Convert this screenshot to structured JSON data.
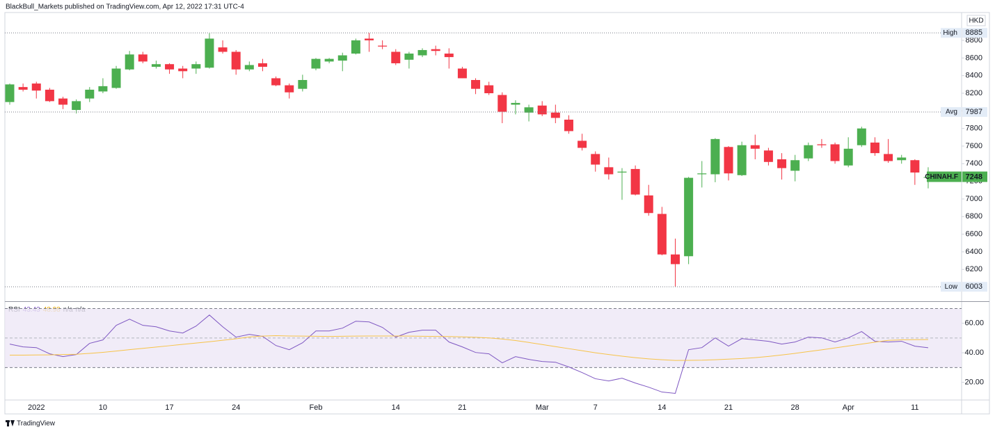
{
  "header": {
    "text": "BlackBull_Markets published on TradingView.com, Apr 12, 2022 17:31 UTC-4"
  },
  "chart_data": [
    {
      "type": "candlestick",
      "currency": "HKD",
      "categories": [
        null,
        null,
        "2022",
        null,
        null,
        null,
        null,
        "10",
        null,
        null,
        null,
        null,
        "17",
        null,
        null,
        null,
        null,
        "24",
        null,
        null,
        null,
        null,
        null,
        "Feb",
        null,
        null,
        null,
        null,
        null,
        "14",
        null,
        null,
        null,
        null,
        "21",
        null,
        null,
        null,
        null,
        null,
        "Mar",
        null,
        null,
        null,
        "7",
        null,
        null,
        null,
        null,
        "14",
        null,
        null,
        null,
        null,
        "21",
        null,
        null,
        null,
        null,
        "28",
        null,
        null,
        null,
        "Apr",
        null,
        null,
        null,
        null,
        "11",
        null
      ],
      "open": [
        8100,
        8270,
        8310,
        8240,
        8140,
        8010,
        8140,
        8220,
        8260,
        8470,
        8640,
        8500,
        8530,
        8480,
        8480,
        8490,
        8720,
        8670,
        8470,
        8540,
        8370,
        8290,
        8250,
        8480,
        8560,
        8570,
        8650,
        8820,
        8740,
        8670,
        8580,
        8630,
        8700,
        8650,
        8480,
        8350,
        8290,
        8180,
        8070,
        7980,
        8060,
        7980,
        7900,
        7660,
        7510,
        7360,
        7300,
        7340,
        7040,
        6830,
        6370,
        6350,
        7280,
        7280,
        7590,
        7270,
        7610,
        7550,
        7450,
        7320,
        7460,
        7620,
        7620,
        7380,
        7610,
        7640,
        7510,
        7440,
        7440,
        7240
      ],
      "high": [
        8310,
        8310,
        8330,
        8260,
        8160,
        8130,
        8270,
        8370,
        8510,
        8680,
        8670,
        8570,
        8540,
        8510,
        8560,
        8880,
        8800,
        8690,
        8560,
        8590,
        8390,
        8310,
        8410,
        8600,
        8600,
        8660,
        8820,
        8885,
        8800,
        8700,
        8670,
        8710,
        8740,
        8710,
        8500,
        8370,
        8330,
        8210,
        8120,
        8070,
        8110,
        8070,
        7950,
        7740,
        7540,
        7470,
        7350,
        7380,
        7160,
        6910,
        6550,
        7250,
        7430,
        7690,
        7600,
        7650,
        7730,
        7580,
        7520,
        7500,
        7640,
        7680,
        7640,
        7700,
        7820,
        7700,
        7680,
        7500,
        7450,
        7360
      ],
      "low": [
        8070,
        8220,
        8140,
        8100,
        8020,
        7970,
        8100,
        8200,
        8250,
        8460,
        8540,
        8480,
        8420,
        8370,
        8420,
        8480,
        8650,
        8410,
        8450,
        8450,
        8280,
        8140,
        8220,
        8460,
        8540,
        8450,
        8640,
        8670,
        8700,
        8520,
        8480,
        8610,
        8630,
        8480,
        8370,
        8190,
        8180,
        7860,
        7960,
        7880,
        7940,
        7860,
        7740,
        7550,
        7310,
        7220,
        6990,
        7040,
        6810,
        6360,
        6003,
        6260,
        7130,
        7190,
        7210,
        7260,
        7450,
        7380,
        7220,
        7200,
        7430,
        7580,
        7400,
        7360,
        7590,
        7490,
        7410,
        7400,
        7160,
        7120
      ],
      "close": [
        8300,
        8240,
        8230,
        8110,
        8070,
        8110,
        8240,
        8280,
        8480,
        8640,
        8560,
        8530,
        8470,
        8450,
        8530,
        8820,
        8670,
        8470,
        8520,
        8500,
        8290,
        8210,
        8350,
        8590,
        8590,
        8630,
        8800,
        8800,
        8730,
        8540,
        8650,
        8690,
        8680,
        8610,
        8370,
        8250,
        8200,
        7990,
        8090,
        8040,
        7960,
        7920,
        7770,
        7580,
        7390,
        7280,
        7310,
        7050,
        6840,
        6370,
        6260,
        7240,
        7290,
        7680,
        7290,
        7610,
        7570,
        7420,
        7350,
        7440,
        7610,
        7610,
        7430,
        7570,
        7800,
        7520,
        7430,
        7470,
        7300,
        7248
      ],
      "up_color": "#4caf50",
      "down_color": "#f23645",
      "ylim": [
        5847,
        9116
      ],
      "yticks": [
        6200,
        6400,
        6600,
        6800,
        7000,
        7200,
        7400,
        7600,
        7800,
        8000,
        8200,
        8400,
        8600,
        8800
      ],
      "reference_lines": [
        {
          "label": "High",
          "value": 8885
        },
        {
          "label": "Avg",
          "value": 7987
        },
        {
          "label": "Low",
          "value": 6003
        }
      ],
      "last_price": {
        "label": "CHINAH.F",
        "value": 7248
      }
    },
    {
      "type": "line",
      "title": "RSI",
      "series": [
        {
          "color": "#7e57c2",
          "values": [
            45.9,
            44.0,
            43.5,
            39.3,
            37.4,
            38.8,
            46.4,
            48.7,
            58.6,
            62.8,
            58.6,
            57.6,
            54.8,
            53.4,
            58.1,
            65.6,
            57.6,
            50.6,
            52.5,
            51.1,
            44.9,
            42.1,
            46.8,
            54.8,
            54.8,
            56.7,
            61.4,
            60.9,
            57.2,
            50.6,
            53.9,
            55.3,
            55.3,
            47.3,
            44.0,
            40.2,
            39.3,
            33.2,
            37.4,
            35.5,
            34.1,
            33.6,
            30.4,
            26.6,
            22.4,
            20.9,
            22.8,
            19.5,
            16.7,
            13.4,
            12.5,
            42.1,
            43.5,
            50.1,
            44.5,
            49.6,
            48.7,
            47.8,
            45.9,
            47.3,
            50.6,
            50.1,
            47.3,
            50.1,
            54.4,
            47.8,
            47.3,
            47.8,
            44.5,
            43.43
          ]
        },
        {
          "color": "#f7c348",
          "values": [
            38.4,
            38.4,
            38.5,
            38.6,
            38.8,
            39.0,
            39.6,
            40.3,
            41.2,
            42.1,
            43.0,
            43.9,
            44.8,
            45.7,
            46.6,
            47.5,
            48.5,
            49.5,
            50.7,
            51.3,
            51.6,
            51.4,
            51.3,
            51.2,
            51.1,
            51.2,
            51.3,
            51.4,
            51.4,
            51.4,
            51.3,
            51.2,
            51.1,
            51.0,
            50.8,
            50.5,
            50.1,
            49.3,
            48.3,
            47.0,
            45.6,
            44.2,
            42.8,
            41.4,
            40.0,
            38.8,
            37.7,
            36.7,
            35.9,
            35.3,
            34.8,
            34.9,
            35.0,
            35.3,
            35.7,
            36.1,
            36.7,
            37.5,
            38.5,
            39.6,
            40.8,
            42.0,
            43.3,
            44.6,
            45.9,
            47.2,
            48.4,
            48.8,
            48.9,
            48.98
          ]
        }
      ],
      "legend_extra": [
        "n/a",
        "n/a"
      ],
      "ylim": [
        8,
        74
      ],
      "yticks": [
        {
          "value": 20,
          "label": "20.00"
        },
        {
          "value": 40,
          "label": "40.00"
        },
        {
          "value": 60,
          "label": "60.00"
        }
      ],
      "bands": [
        30,
        70
      ],
      "midline": 50,
      "band_color": "#ede7f6"
    }
  ],
  "footer": {
    "brand": "TradingView"
  }
}
